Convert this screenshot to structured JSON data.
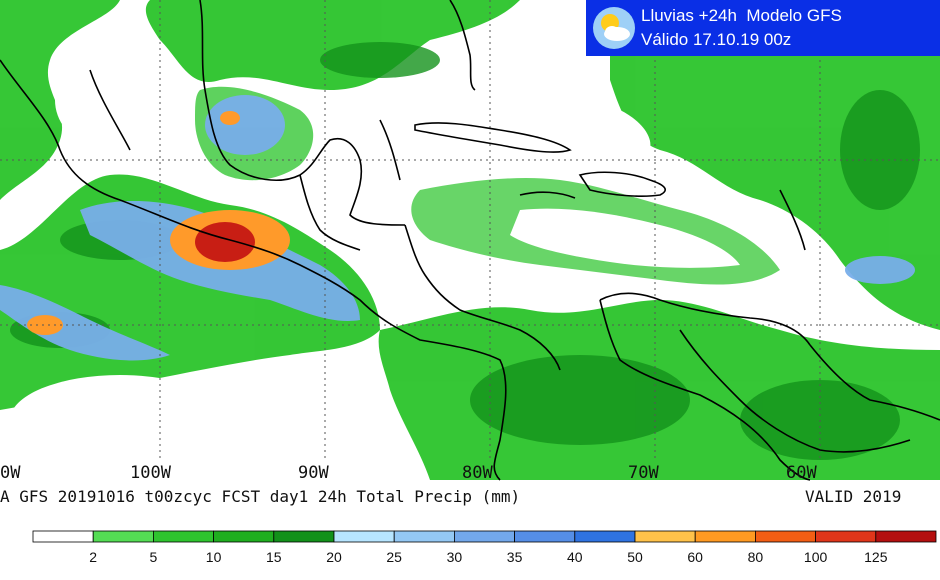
{
  "title": {
    "line1": "Lluvias +24h  Modelo GFS",
    "line2": "Válido 17.10.19 00z",
    "icon": "sun-cloud-icon"
  },
  "longitude_labels": [
    "0W",
    "100W",
    "90W",
    "80W",
    "70W",
    "60W"
  ],
  "footer": {
    "left": "A GFS 20191016 t00zcyc FCST day1 24h Total Precip (mm)",
    "right": "VALID 2019"
  },
  "colorbar": {
    "labels": [
      "2",
      "5",
      "10",
      "15",
      "20",
      "25",
      "30",
      "35",
      "40",
      "50",
      "60",
      "80",
      "100",
      "125"
    ],
    "colors": [
      "#ffffff",
      "#54dd54",
      "#2ec42e",
      "#1fae1f",
      "#12911a",
      "#b7e5ff",
      "#94c8f4",
      "#73a8eb",
      "#558ee6",
      "#2f73e1",
      "#ffc24a",
      "#ff9a22",
      "#f35e14",
      "#e0361a",
      "#b40f0f"
    ]
  },
  "map_colors": {
    "land": "#ffffff",
    "rain_light": "#22c122",
    "rain_mid": "#189a18",
    "rain_blue": "#77aeea",
    "rain_orange": "#ff9a2a",
    "rain_red": "#c81e14",
    "coast": "#000000",
    "grid": "#555555"
  }
}
